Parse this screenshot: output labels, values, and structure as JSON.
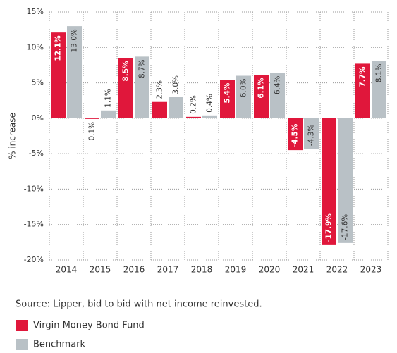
{
  "chart_data": {
    "type": "bar",
    "y_label": "% increase",
    "categories": [
      "2014",
      "2015",
      "2016",
      "2017",
      "2018",
      "2019",
      "2020",
      "2021",
      "2022",
      "2023"
    ],
    "series": [
      {
        "name": "Virgin Money Bond Fund",
        "color": "#e0173b",
        "values": [
          12.1,
          -0.1,
          8.5,
          2.3,
          0.2,
          5.4,
          6.1,
          -4.5,
          -17.9,
          7.7
        ],
        "value_labels": [
          "12.1%",
          "-0.1%",
          "8.5%",
          "2.3%",
          "0.2%",
          "5.4%",
          "6.1%",
          "-4.5%",
          "-17.9%",
          "7.7%"
        ]
      },
      {
        "name": "Benchmark",
        "color": "#b9c1c6",
        "values": [
          13.0,
          1.1,
          8.7,
          3.0,
          0.4,
          6.0,
          6.4,
          -4.3,
          -17.6,
          8.1
        ],
        "value_labels": [
          "13.0%",
          "1.1%",
          "8.7%",
          "3.0%",
          "0.4%",
          "6.0%",
          "6.4%",
          "-4.3%",
          "-17.6%",
          "8.1%"
        ]
      }
    ],
    "ylim": [
      -20,
      15
    ],
    "yticks": [
      {
        "value": -20,
        "label": "-20%"
      },
      {
        "value": -15,
        "label": "-15%"
      },
      {
        "value": -10,
        "label": "-10%"
      },
      {
        "value": -5,
        "label": "-5%"
      },
      {
        "value": 0,
        "label": "0%"
      },
      {
        "value": 5,
        "label": "5%"
      },
      {
        "value": 10,
        "label": "10%"
      },
      {
        "value": 15,
        "label": "15%"
      }
    ],
    "grid": true,
    "source": "Source: Lipper, bid to bid with net income reinvested."
  }
}
